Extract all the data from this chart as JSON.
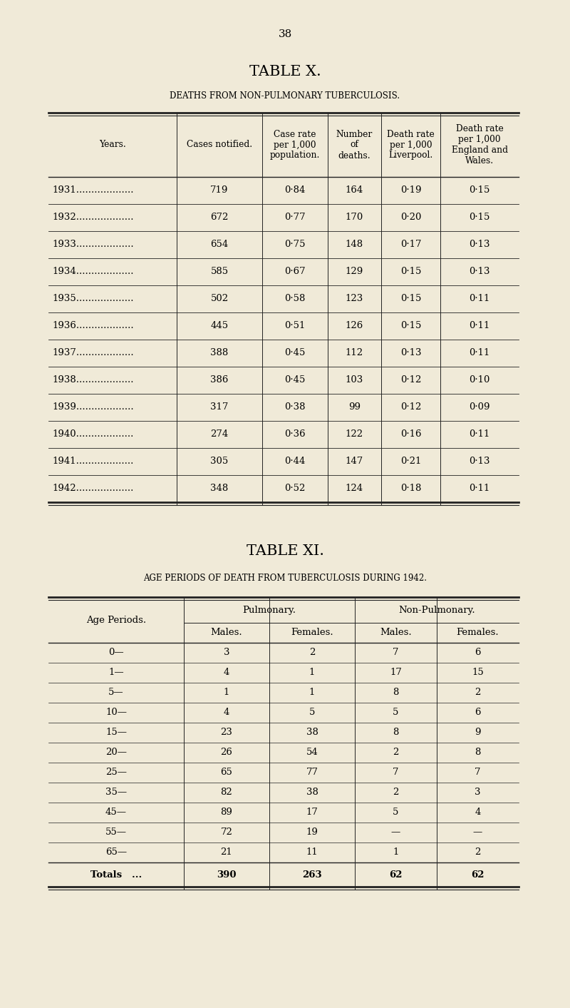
{
  "bg_color": "#f0ead8",
  "page_number": "38",
  "table_x_title": "TABLE X.",
  "table_x_subtitle": "DEATHS FROM NON-PULMONARY TUBERCULOSIS.",
  "table_x_headers": [
    "Years.",
    "Cases notified.",
    "Case rate\nper 1,000\npopulation.",
    "Number\nof\ndeaths.",
    "Death rate\nper 1,000\nLiverpool.",
    "Death rate\nper 1,000\nEngland and\nWales."
  ],
  "table_x_data": [
    [
      "1931...................",
      "719",
      "0·84",
      "164",
      "0·19",
      "0·15"
    ],
    [
      "1932...................",
      "672",
      "0·77",
      "170",
      "0·20",
      "0·15"
    ],
    [
      "1933...................",
      "654",
      "0·75",
      "148",
      "0·17",
      "0·13"
    ],
    [
      "1934...................",
      "585",
      "0·67",
      "129",
      "0·15",
      "0·13"
    ],
    [
      "1935...................",
      "502",
      "0·58",
      "123",
      "0·15",
      "0·11"
    ],
    [
      "1936...................",
      "445",
      "0·51",
      "126",
      "0·15",
      "0·11"
    ],
    [
      "1937...................",
      "388",
      "0·45",
      "112",
      "0·13",
      "0·11"
    ],
    [
      "1938...................",
      "386",
      "0·45",
      "103",
      "0·12",
      "0·10"
    ],
    [
      "1939...................",
      "317",
      "0·38",
      "99",
      "0·12",
      "0·09"
    ],
    [
      "1940...................",
      "274",
      "0·36",
      "122",
      "0·16",
      "0·11"
    ],
    [
      "1941...................",
      "305",
      "0·44",
      "147",
      "0·21",
      "0·13"
    ],
    [
      "1942...................",
      "348",
      "0·52",
      "124",
      "0·18",
      "0·11"
    ]
  ],
  "table_xi_title": "TABLE XI.",
  "table_xi_subtitle": "AGE PERIODS OF DEATH FROM TUBERCULOSIS DURING 1942.",
  "table_xi_data": [
    [
      "0—",
      "3",
      "2",
      "7",
      "6"
    ],
    [
      "1—",
      "4",
      "1",
      "17",
      "15"
    ],
    [
      "5—",
      "1",
      "1",
      "8",
      "2"
    ],
    [
      "10—",
      "4",
      "5",
      "5",
      "6"
    ],
    [
      "15—",
      "23",
      "38",
      "8",
      "9"
    ],
    [
      "20—",
      "26",
      "54",
      "2",
      "8"
    ],
    [
      "25—",
      "65",
      "77",
      "7",
      "7"
    ],
    [
      "35—",
      "82",
      "38",
      "2",
      "3"
    ],
    [
      "45—",
      "89",
      "17",
      "5",
      "4"
    ],
    [
      "55—",
      "72",
      "19",
      "—",
      "—"
    ],
    [
      "65—",
      "21",
      "11",
      "1",
      "2"
    ]
  ],
  "table_xi_totals": [
    "Totals   ...",
    "390",
    "263",
    "62",
    "62"
  ]
}
